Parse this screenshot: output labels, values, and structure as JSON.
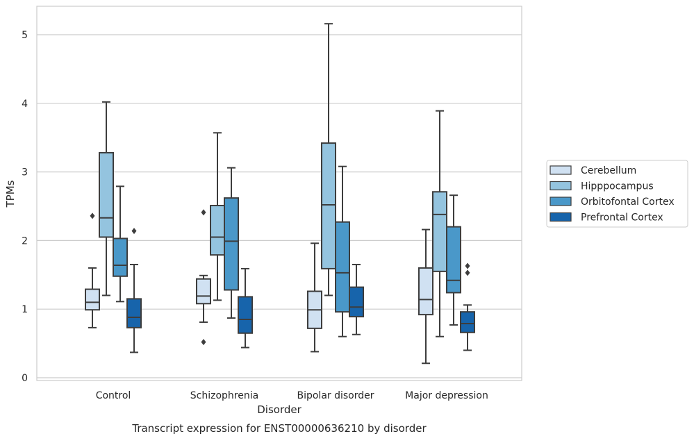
{
  "chart_data": {
    "type": "box",
    "title": "Transcript expression for ENST00000636210 by disorder",
    "xlabel": "Disorder",
    "ylabel": "TPMs",
    "ylim": [
      -0.05,
      5.4
    ],
    "yticks": [
      0,
      1,
      2,
      3,
      4,
      5
    ],
    "categories": [
      "Control",
      "Schizophrenia",
      "Bipolar disorder",
      "Major depression"
    ],
    "grid": true,
    "legend_position": "right",
    "series": [
      {
        "name": "Cerebellum",
        "color": "#d0e1f2",
        "boxes": [
          {
            "whislo": 0.73,
            "q1": 0.99,
            "med": 1.1,
            "q3": 1.29,
            "whishi": 1.6,
            "fliers": [
              2.36
            ]
          },
          {
            "whislo": 0.81,
            "q1": 1.08,
            "med": 1.19,
            "q3": 1.44,
            "whishi": 1.49,
            "fliers": [
              0.52,
              2.41
            ]
          },
          {
            "whislo": 0.38,
            "q1": 0.72,
            "med": 0.99,
            "q3": 1.26,
            "whishi": 1.96,
            "fliers": []
          },
          {
            "whislo": 0.21,
            "q1": 0.92,
            "med": 1.14,
            "q3": 1.6,
            "whishi": 2.16,
            "fliers": []
          }
        ]
      },
      {
        "name": "Hipppocampus",
        "color": "#94c4df",
        "boxes": [
          {
            "whislo": 1.2,
            "q1": 2.05,
            "med": 2.33,
            "q3": 3.28,
            "whishi": 4.02,
            "fliers": []
          },
          {
            "whislo": 1.13,
            "q1": 1.79,
            "med": 2.05,
            "q3": 2.51,
            "whishi": 3.57,
            "fliers": []
          },
          {
            "whislo": 1.2,
            "q1": 1.59,
            "med": 2.52,
            "q3": 3.42,
            "whishi": 5.16,
            "fliers": []
          },
          {
            "whislo": 0.6,
            "q1": 1.55,
            "med": 2.38,
            "q3": 2.71,
            "whishi": 3.89,
            "fliers": []
          }
        ]
      },
      {
        "name": "Orbitofontal Cortex",
        "color": "#4a98c9",
        "boxes": [
          {
            "whislo": 1.11,
            "q1": 1.48,
            "med": 1.64,
            "q3": 2.03,
            "whishi": 2.79,
            "fliers": []
          },
          {
            "whislo": 0.87,
            "q1": 1.28,
            "med": 1.99,
            "q3": 2.62,
            "whishi": 3.06,
            "fliers": []
          },
          {
            "whislo": 0.6,
            "q1": 0.96,
            "med": 1.53,
            "q3": 2.27,
            "whishi": 3.08,
            "fliers": []
          },
          {
            "whislo": 0.77,
            "q1": 1.24,
            "med": 1.42,
            "q3": 2.2,
            "whishi": 2.66,
            "fliers": []
          }
        ]
      },
      {
        "name": "Prefrontal Cortex",
        "color": "#1764ab",
        "boxes": [
          {
            "whislo": 0.37,
            "q1": 0.73,
            "med": 0.88,
            "q3": 1.15,
            "whishi": 1.65,
            "fliers": [
              2.14
            ]
          },
          {
            "whislo": 0.44,
            "q1": 0.65,
            "med": 0.85,
            "q3": 1.18,
            "whishi": 1.59,
            "fliers": []
          },
          {
            "whislo": 0.63,
            "q1": 0.89,
            "med": 1.03,
            "q3": 1.32,
            "whishi": 1.65,
            "fliers": []
          },
          {
            "whislo": 0.4,
            "q1": 0.66,
            "med": 0.79,
            "q3": 0.96,
            "whishi": 1.06,
            "fliers": [
              1.53,
              1.63
            ]
          }
        ]
      }
    ]
  }
}
